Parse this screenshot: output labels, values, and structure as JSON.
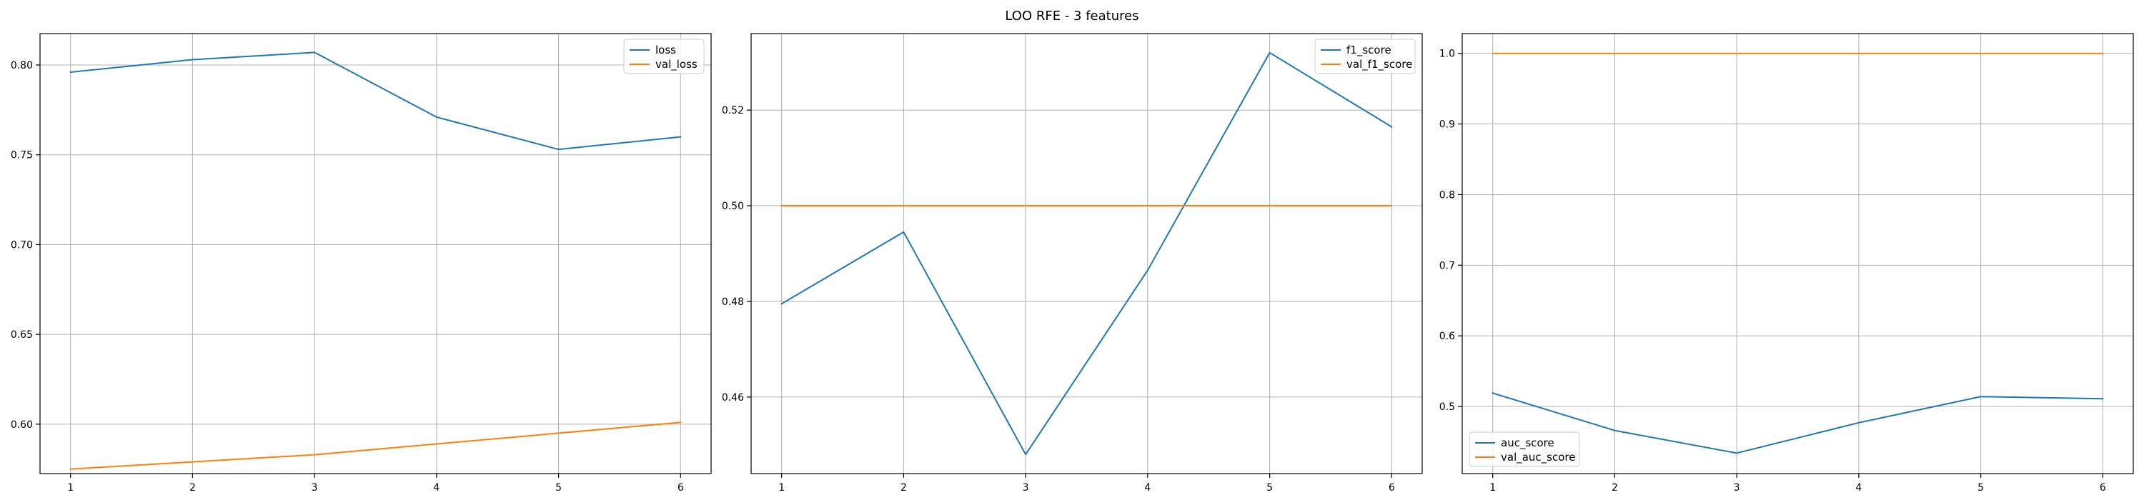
{
  "figure": {
    "title": "LOO RFE - 3 features"
  },
  "chart_data": [
    {
      "type": "line",
      "x": [
        1,
        2,
        3,
        4,
        5,
        6
      ],
      "xlim": [
        0.75,
        6.25
      ],
      "ylim": [
        0.5725,
        0.8175
      ],
      "xticks": [
        1,
        2,
        3,
        4,
        5,
        6
      ],
      "yticks": [
        "0.60",
        "0.65",
        "0.70",
        "0.75",
        "0.80"
      ],
      "grid": true,
      "legend_position": "upper right",
      "series": [
        {
          "name": "loss",
          "color": "#1f77b4",
          "values": [
            0.796,
            0.803,
            0.807,
            0.771,
            0.753,
            0.76
          ]
        },
        {
          "name": "val_loss",
          "color": "#ff7f0e",
          "values": [
            0.575,
            0.579,
            0.583,
            0.589,
            0.595,
            0.601
          ]
        }
      ]
    },
    {
      "type": "line",
      "x": [
        1,
        2,
        3,
        4,
        5,
        6
      ],
      "xlim": [
        0.75,
        6.25
      ],
      "ylim": [
        0.444,
        0.536
      ],
      "xticks": [
        1,
        2,
        3,
        4,
        5,
        6
      ],
      "yticks": [
        "0.46",
        "0.48",
        "0.50",
        "0.52"
      ],
      "grid": true,
      "legend_position": "upper right",
      "series": [
        {
          "name": "f1_score",
          "color": "#1f77b4",
          "values": [
            0.4795,
            0.4945,
            0.448,
            0.4865,
            0.532,
            0.5165
          ]
        },
        {
          "name": "val_f1_score",
          "color": "#ff7f0e",
          "values": [
            0.5,
            0.5,
            0.5,
            0.5,
            0.5,
            0.5
          ]
        }
      ]
    },
    {
      "type": "line",
      "x": [
        1,
        2,
        3,
        4,
        5,
        6
      ],
      "xlim": [
        0.75,
        6.25
      ],
      "ylim": [
        0.405,
        1.028
      ],
      "xticks": [
        1,
        2,
        3,
        4,
        5,
        6
      ],
      "yticks": [
        "0.5",
        "0.6",
        "0.7",
        "0.8",
        "0.9",
        "1.0"
      ],
      "grid": true,
      "legend_position": "lower left",
      "series": [
        {
          "name": "auc_score",
          "color": "#1f77b4",
          "values": [
            0.519,
            0.466,
            0.434,
            0.477,
            0.514,
            0.511
          ]
        },
        {
          "name": "val_auc_score",
          "color": "#ff7f0e",
          "values": [
            1.0,
            1.0,
            1.0,
            1.0,
            1.0,
            1.0
          ]
        }
      ]
    }
  ]
}
